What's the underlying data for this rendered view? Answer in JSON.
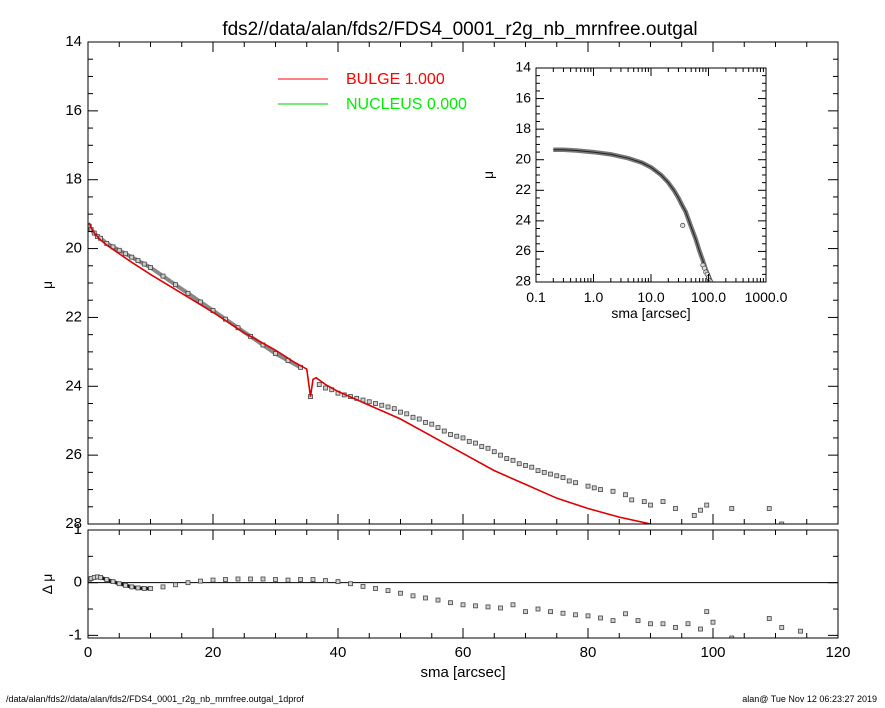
{
  "title": "fds2//data/alan/fds2/FDS4_0001_r2g_nb_mrnfree.outgal",
  "footer_left": "/data/alan/fds2//data/alan/fds2/FDS4_0001_r2g_nb_mrnfree.outgal_1dprof",
  "footer_right": "alan@  Tue Nov 12 06:23:27 2019",
  "chart_data": [
    {
      "type": "scatter",
      "panel": "main",
      "xlabel": "",
      "ylabel": "μ",
      "xlim": [
        0,
        120
      ],
      "ylim": [
        28,
        14
      ],
      "yticks": [
        "14",
        "16",
        "18",
        "20",
        "22",
        "24",
        "26",
        "28"
      ],
      "legend": [
        {
          "name": "BULGE  1.000",
          "color": "#ff0000"
        },
        {
          "name": "NUCLEUS  0.000",
          "color": "#00ff00"
        }
      ],
      "colors": {
        "data": "#555555",
        "bulge": "#dd0000"
      },
      "bulge_model": {
        "x": [
          0.2,
          0.5,
          1,
          2,
          3,
          5,
          7,
          10,
          15,
          20,
          25,
          30,
          33,
          35,
          35.6,
          36,
          36.5,
          38,
          40,
          45,
          50,
          55,
          60,
          65,
          70,
          75,
          80,
          85,
          90,
          93
        ],
        "y": [
          19.25,
          19.4,
          19.55,
          19.75,
          19.9,
          20.15,
          20.4,
          20.75,
          21.3,
          21.85,
          22.45,
          22.95,
          23.3,
          23.5,
          24.3,
          23.8,
          23.75,
          23.95,
          24.15,
          24.55,
          24.95,
          25.45,
          25.95,
          26.45,
          26.85,
          27.25,
          27.55,
          27.8,
          28.0,
          28.1
        ]
      },
      "observed": {
        "x": [
          0.2,
          0.5,
          1,
          1.5,
          2,
          3,
          4,
          5,
          6,
          7,
          8,
          9,
          10,
          12,
          14,
          16,
          18,
          20,
          22,
          24,
          26,
          28,
          30,
          32,
          34,
          35.6,
          37,
          38,
          39,
          40,
          41,
          42,
          43,
          44,
          45,
          46,
          47,
          48,
          49,
          50,
          51,
          52,
          53,
          54,
          55,
          56,
          57,
          58,
          59,
          60,
          61,
          62,
          63,
          64,
          65,
          66,
          67,
          68,
          69,
          70,
          71,
          72,
          73,
          74,
          75,
          76,
          77,
          78,
          80,
          81,
          82,
          84,
          86,
          87,
          89,
          90,
          92,
          94,
          97,
          98,
          99,
          103,
          109,
          111
        ],
        "y": [
          19.35,
          19.45,
          19.55,
          19.65,
          19.7,
          19.85,
          19.95,
          20.05,
          20.15,
          20.25,
          20.35,
          20.45,
          20.55,
          20.8,
          21.05,
          21.3,
          21.55,
          21.8,
          22.05,
          22.3,
          22.55,
          22.8,
          23.05,
          23.25,
          23.45,
          24.3,
          23.95,
          24.05,
          24.1,
          24.2,
          24.25,
          24.3,
          24.35,
          24.4,
          24.45,
          24.5,
          24.55,
          24.6,
          24.65,
          24.75,
          24.8,
          24.9,
          24.95,
          25.05,
          25.1,
          25.2,
          25.3,
          25.4,
          25.45,
          25.5,
          25.6,
          25.65,
          25.75,
          25.8,
          25.9,
          26.0,
          26.1,
          26.15,
          26.25,
          26.3,
          26.35,
          26.45,
          26.5,
          26.55,
          26.6,
          26.65,
          26.75,
          26.8,
          26.9,
          26.95,
          27.0,
          27.05,
          27.15,
          27.3,
          27.35,
          27.45,
          27.35,
          27.55,
          27.75,
          27.6,
          27.45,
          27.55,
          27.55,
          28.0
        ]
      }
    },
    {
      "type": "scatter",
      "panel": "inset",
      "xlabel": "sma [arcsec]",
      "ylabel": "μ",
      "xscale": "log",
      "xlim": [
        0.1,
        1000
      ],
      "ylim": [
        28,
        14
      ],
      "xticks": [
        "0.1",
        "1.0",
        "10.0",
        "100.0",
        "1000.0"
      ],
      "yticks": [
        "14",
        "16",
        "18",
        "20",
        "22",
        "24",
        "26",
        "28"
      ],
      "curve": {
        "x": [
          0.2,
          0.3,
          0.5,
          1,
          2,
          4,
          7,
          10,
          15,
          20,
          25,
          30,
          35,
          40,
          50,
          60,
          70,
          80,
          90,
          100,
          110
        ],
        "y": [
          19.35,
          19.35,
          19.4,
          19.5,
          19.65,
          19.9,
          20.2,
          20.5,
          21.0,
          21.5,
          22.0,
          22.5,
          23.0,
          23.4,
          24.4,
          25.2,
          26.0,
          26.6,
          27.2,
          27.6,
          28.0
        ]
      },
      "observed": {
        "x": [
          35.6,
          80,
          85,
          90,
          95,
          100,
          105,
          110
        ],
        "y": [
          24.3,
          26.9,
          27.1,
          27.35,
          27.5,
          27.7,
          27.9,
          28.0
        ]
      }
    },
    {
      "type": "scatter",
      "panel": "residual",
      "xlabel": "sma [arcsec]",
      "ylabel": "Δ μ",
      "xlim": [
        0,
        120
      ],
      "ylim": [
        -1.05,
        1.0
      ],
      "xticks": [
        "0",
        "20",
        "40",
        "60",
        "80",
        "100",
        "120"
      ],
      "yticks": [
        "1",
        "0",
        "-1"
      ],
      "zero_line": 0,
      "residual": {
        "x": [
          0.2,
          0.5,
          1,
          1.5,
          2,
          3,
          4,
          5,
          6,
          7,
          8,
          9,
          10,
          12,
          14,
          16,
          18,
          20,
          22,
          24,
          26,
          28,
          30,
          32,
          34,
          36,
          38,
          40,
          42,
          44,
          46,
          48,
          50,
          52,
          54,
          56,
          58,
          60,
          62,
          64,
          66,
          68,
          70,
          72,
          74,
          76,
          78,
          80,
          82,
          84,
          86,
          88,
          90,
          92,
          94,
          96,
          98,
          99,
          100,
          103,
          109,
          111,
          114
        ],
        "y": [
          0.05,
          0.08,
          0.1,
          0.11,
          0.1,
          0.06,
          0.02,
          -0.02,
          -0.05,
          -0.08,
          -0.1,
          -0.11,
          -0.11,
          -0.08,
          -0.04,
          0.0,
          0.03,
          0.05,
          0.06,
          0.07,
          0.07,
          0.07,
          0.06,
          0.05,
          0.06,
          0.06,
          0.04,
          0.02,
          -0.02,
          -0.07,
          -0.11,
          -0.15,
          -0.2,
          -0.25,
          -0.29,
          -0.33,
          -0.38,
          -0.42,
          -0.44,
          -0.46,
          -0.48,
          -0.42,
          -0.55,
          -0.5,
          -0.55,
          -0.58,
          -0.61,
          -0.63,
          -0.67,
          -0.72,
          -0.59,
          -0.72,
          -0.78,
          -0.78,
          -0.85,
          -0.78,
          -0.88,
          -0.55,
          -0.75,
          -1.05,
          -0.68,
          -0.85,
          -0.92
        ]
      }
    }
  ]
}
